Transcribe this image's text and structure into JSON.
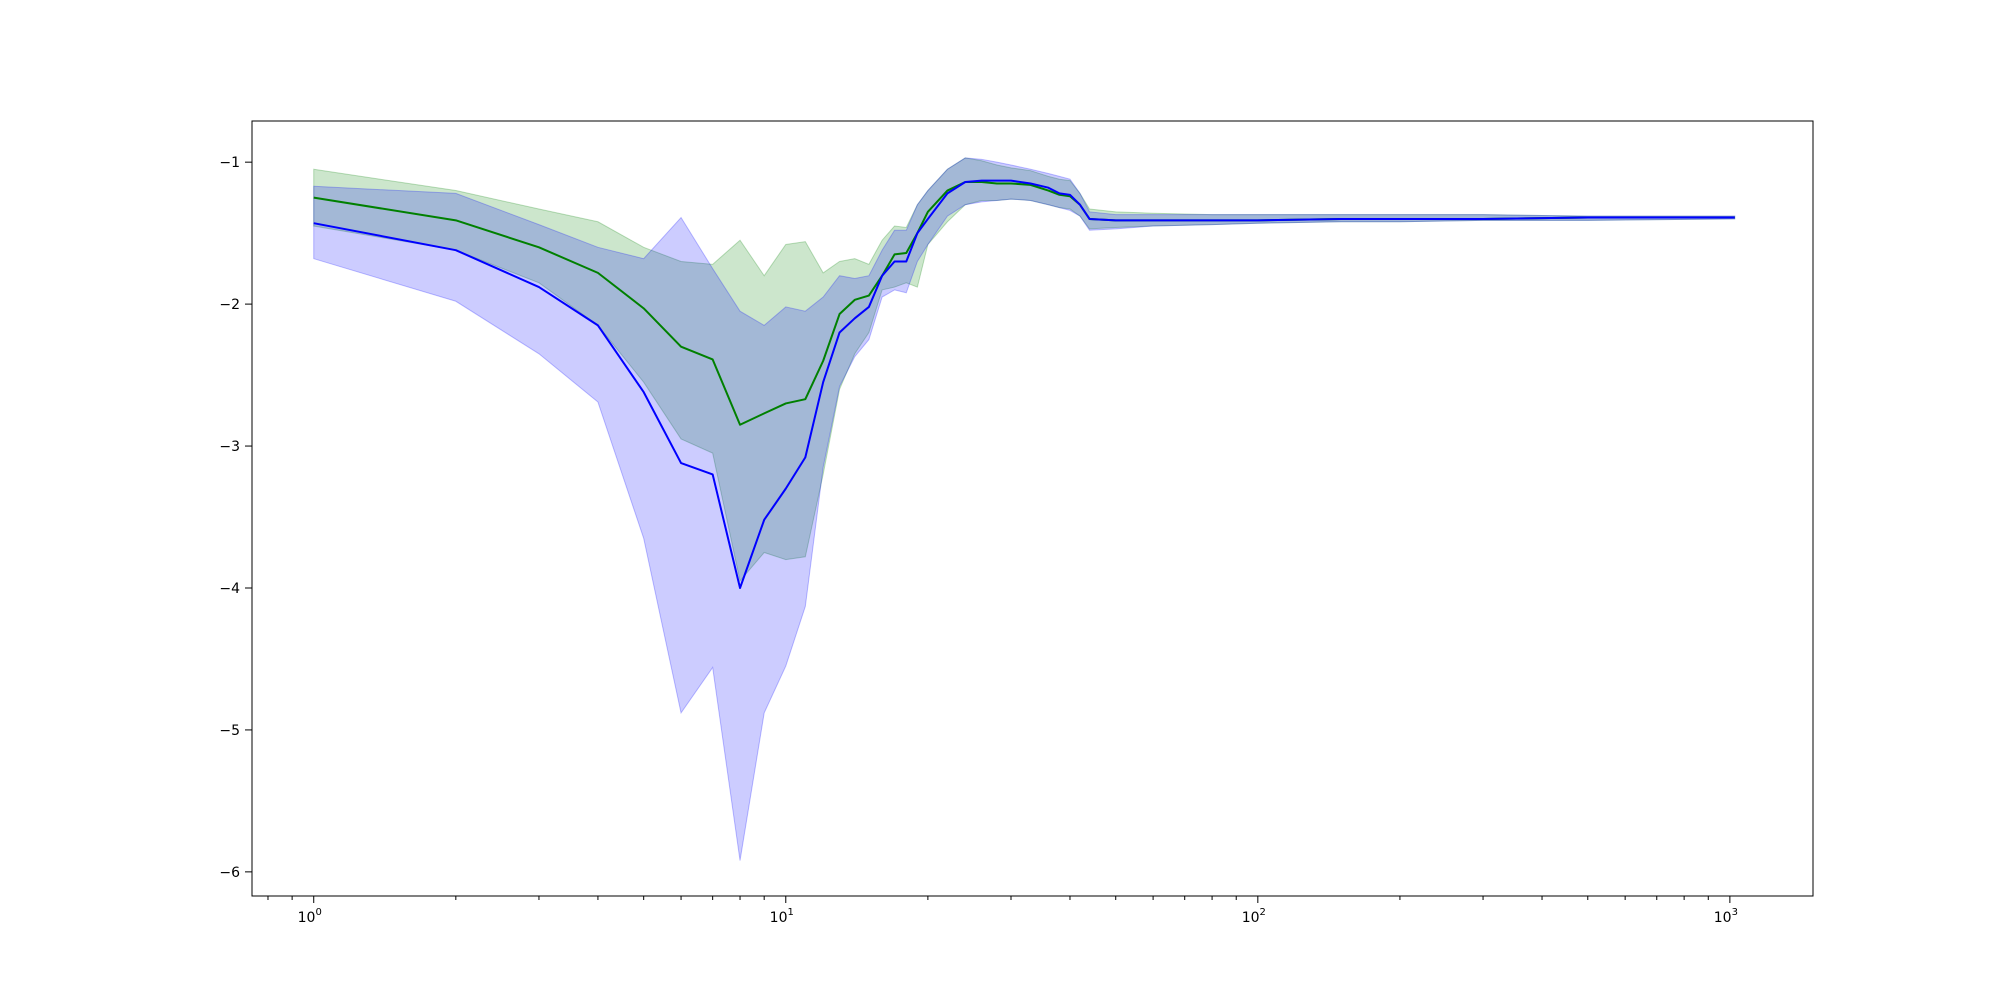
{
  "chart_data": {
    "type": "line",
    "title": "",
    "xlabel": "",
    "ylabel": "",
    "xscale": "log",
    "xlim": [
      0.74,
      1500
    ],
    "ylim": [
      -6.17,
      -0.71
    ],
    "grid": false,
    "legend": "none",
    "x_ticks": [
      {
        "value": 1,
        "label": "10",
        "exp": "0"
      },
      {
        "value": 10,
        "label": "10",
        "exp": "1"
      },
      {
        "value": 100,
        "label": "10",
        "exp": "2"
      },
      {
        "value": 1000,
        "label": "10",
        "exp": "3"
      }
    ],
    "y_ticks": [
      {
        "value": -1,
        "label": "−1"
      },
      {
        "value": -2,
        "label": "−2"
      },
      {
        "value": -3,
        "label": "−3"
      },
      {
        "value": -4,
        "label": "−4"
      },
      {
        "value": -5,
        "label": "−5"
      },
      {
        "value": -6,
        "label": "−6"
      }
    ],
    "series": [
      {
        "color": "#008000",
        "band_color": "#008000",
        "x": [
          1,
          2,
          3,
          4,
          5,
          6,
          7,
          8,
          9,
          10,
          11,
          12,
          13,
          14,
          15,
          16,
          17,
          18,
          19,
          20,
          22,
          24,
          26,
          28,
          30,
          33,
          36,
          38,
          40,
          42,
          44,
          50,
          60,
          80,
          100,
          150,
          200,
          300,
          500,
          1024
        ],
        "y": [
          -1.25,
          -1.41,
          -1.6,
          -1.78,
          -2.03,
          -2.3,
          -2.39,
          -2.85,
          -2.77,
          -2.7,
          -2.67,
          -2.4,
          -2.07,
          -1.97,
          -1.94,
          -1.8,
          -1.65,
          -1.64,
          -1.5,
          -1.35,
          -1.2,
          -1.14,
          -1.14,
          -1.15,
          -1.15,
          -1.16,
          -1.2,
          -1.23,
          -1.24,
          -1.3,
          -1.4,
          -1.41,
          -1.41,
          -1.41,
          -1.41,
          -1.4,
          -1.4,
          -1.4,
          -1.39,
          -1.39
        ],
        "lower": [
          -1.45,
          -1.62,
          -1.85,
          -2.15,
          -2.55,
          -2.95,
          -3.05,
          -3.95,
          -3.75,
          -3.8,
          -3.78,
          -3.2,
          -2.6,
          -2.35,
          -2.2,
          -1.9,
          -1.88,
          -1.85,
          -1.88,
          -1.58,
          -1.42,
          -1.3,
          -1.27,
          -1.27,
          -1.26,
          -1.27,
          -1.3,
          -1.32,
          -1.33,
          -1.38,
          -1.47,
          -1.46,
          -1.45,
          -1.44,
          -1.43,
          -1.42,
          -1.42,
          -1.41,
          -1.41,
          -1.4
        ],
        "upper": [
          -1.05,
          -1.2,
          -1.33,
          -1.42,
          -1.6,
          -1.7,
          -1.72,
          -1.55,
          -1.8,
          -1.58,
          -1.56,
          -1.78,
          -1.7,
          -1.68,
          -1.72,
          -1.55,
          -1.45,
          -1.46,
          -1.3,
          -1.2,
          -1.05,
          -0.97,
          -0.99,
          -1.02,
          -1.04,
          -1.06,
          -1.1,
          -1.12,
          -1.13,
          -1.22,
          -1.33,
          -1.35,
          -1.36,
          -1.37,
          -1.37,
          -1.37,
          -1.37,
          -1.37,
          -1.38,
          -1.38
        ]
      },
      {
        "color": "#0000ff",
        "band_color": "#0000ff",
        "x": [
          1,
          2,
          3,
          4,
          5,
          6,
          7,
          8,
          9,
          10,
          11,
          12,
          13,
          14,
          15,
          16,
          17,
          18,
          19,
          20,
          22,
          24,
          26,
          28,
          30,
          33,
          36,
          38,
          40,
          42,
          44,
          50,
          60,
          80,
          100,
          150,
          200,
          300,
          500,
          1024
        ],
        "y": [
          -1.43,
          -1.62,
          -1.88,
          -2.15,
          -2.62,
          -3.12,
          -3.2,
          -4.0,
          -3.52,
          -3.3,
          -3.08,
          -2.55,
          -2.2,
          -2.1,
          -2.02,
          -1.8,
          -1.7,
          -1.7,
          -1.5,
          -1.4,
          -1.22,
          -1.14,
          -1.13,
          -1.13,
          -1.13,
          -1.15,
          -1.18,
          -1.22,
          -1.23,
          -1.3,
          -1.4,
          -1.41,
          -1.41,
          -1.41,
          -1.41,
          -1.4,
          -1.4,
          -1.4,
          -1.39,
          -1.39
        ],
        "lower": [
          -1.68,
          -1.98,
          -2.35,
          -2.69,
          -3.65,
          -4.88,
          -4.56,
          -5.92,
          -4.88,
          -4.55,
          -4.13,
          -3.15,
          -2.58,
          -2.37,
          -2.25,
          -1.95,
          -1.9,
          -1.92,
          -1.7,
          -1.58,
          -1.38,
          -1.3,
          -1.28,
          -1.27,
          -1.26,
          -1.27,
          -1.3,
          -1.32,
          -1.34,
          -1.38,
          -1.48,
          -1.47,
          -1.45,
          -1.44,
          -1.43,
          -1.42,
          -1.42,
          -1.41,
          -1.41,
          -1.4
        ],
        "upper": [
          -1.17,
          -1.22,
          -1.44,
          -1.6,
          -1.68,
          -1.39,
          -1.75,
          -2.05,
          -2.15,
          -2.02,
          -2.05,
          -1.95,
          -1.8,
          -1.82,
          -1.8,
          -1.62,
          -1.48,
          -1.48,
          -1.3,
          -1.2,
          -1.05,
          -0.97,
          -0.98,
          -1.0,
          -1.02,
          -1.05,
          -1.08,
          -1.1,
          -1.12,
          -1.22,
          -1.35,
          -1.37,
          -1.37,
          -1.37,
          -1.37,
          -1.37,
          -1.37,
          -1.37,
          -1.38,
          -1.38
        ]
      }
    ]
  }
}
